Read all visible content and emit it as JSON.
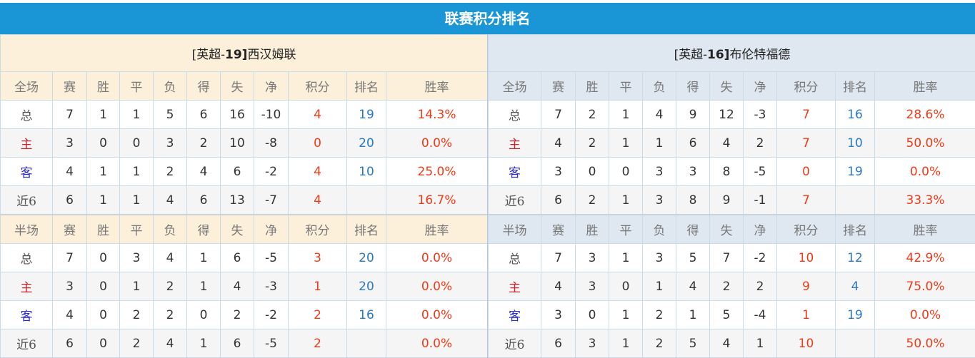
{
  "title": "联赛积分排名",
  "colors": {
    "title_bg": "#1a95d5",
    "home_header_bg": "#fcf0da",
    "away_header_bg": "#dfe8f1",
    "points": "#f03a17",
    "rank": "#2a78c8"
  },
  "columns": [
    "赛",
    "胜",
    "平",
    "负",
    "得",
    "失",
    "净",
    "积分",
    "排名",
    "胜率"
  ],
  "teams": [
    {
      "league_tag": "[英超-",
      "rank_tag": "19",
      "close": "]",
      "name": "西汉姆联",
      "sections": [
        {
          "label": "全场",
          "rows": [
            [
              "总",
              "7",
              "1",
              "1",
              "5",
              "6",
              "16",
              "-10",
              "4",
              "19",
              "14.3%"
            ],
            [
              "主",
              "3",
              "0",
              "0",
              "3",
              "2",
              "10",
              "-8",
              "0",
              "20",
              "0.0%"
            ],
            [
              "客",
              "4",
              "1",
              "1",
              "2",
              "4",
              "6",
              "-2",
              "4",
              "10",
              "25.0%"
            ],
            [
              "近6",
              "6",
              "1",
              "1",
              "4",
              "6",
              "13",
              "-7",
              "4",
              "",
              "16.7%"
            ]
          ]
        },
        {
          "label": "半场",
          "rows": [
            [
              "总",
              "7",
              "0",
              "3",
              "4",
              "1",
              "6",
              "-5",
              "3",
              "20",
              "0.0%"
            ],
            [
              "主",
              "3",
              "0",
              "1",
              "2",
              "1",
              "4",
              "-3",
              "1",
              "20",
              "0.0%"
            ],
            [
              "客",
              "4",
              "0",
              "2",
              "2",
              "0",
              "2",
              "-2",
              "2",
              "16",
              "0.0%"
            ],
            [
              "近6",
              "6",
              "0",
              "2",
              "4",
              "1",
              "6",
              "-5",
              "2",
              "",
              "0.0%"
            ]
          ]
        }
      ]
    },
    {
      "league_tag": "[英超-",
      "rank_tag": "16",
      "close": "]",
      "name": "布伦特福德",
      "sections": [
        {
          "label": "全场",
          "rows": [
            [
              "总",
              "7",
              "2",
              "1",
              "4",
              "9",
              "12",
              "-3",
              "7",
              "16",
              "28.6%"
            ],
            [
              "主",
              "4",
              "2",
              "1",
              "1",
              "6",
              "4",
              "2",
              "7",
              "10",
              "50.0%"
            ],
            [
              "客",
              "3",
              "0",
              "0",
              "3",
              "3",
              "8",
              "-5",
              "0",
              "19",
              "0.0%"
            ],
            [
              "近6",
              "6",
              "2",
              "1",
              "3",
              "8",
              "9",
              "-1",
              "7",
              "",
              "33.3%"
            ]
          ]
        },
        {
          "label": "半场",
          "rows": [
            [
              "总",
              "7",
              "3",
              "1",
              "3",
              "5",
              "7",
              "-2",
              "10",
              "12",
              "42.9%"
            ],
            [
              "主",
              "4",
              "3",
              "0",
              "1",
              "4",
              "2",
              "2",
              "9",
              "4",
              "75.0%"
            ],
            [
              "客",
              "3",
              "0",
              "1",
              "2",
              "1",
              "5",
              "-4",
              "1",
              "19",
              "0.0%"
            ],
            [
              "近6",
              "6",
              "3",
              "1",
              "2",
              "5",
              "4",
              "1",
              "10",
              "",
              "50.0%"
            ]
          ]
        }
      ]
    }
  ]
}
